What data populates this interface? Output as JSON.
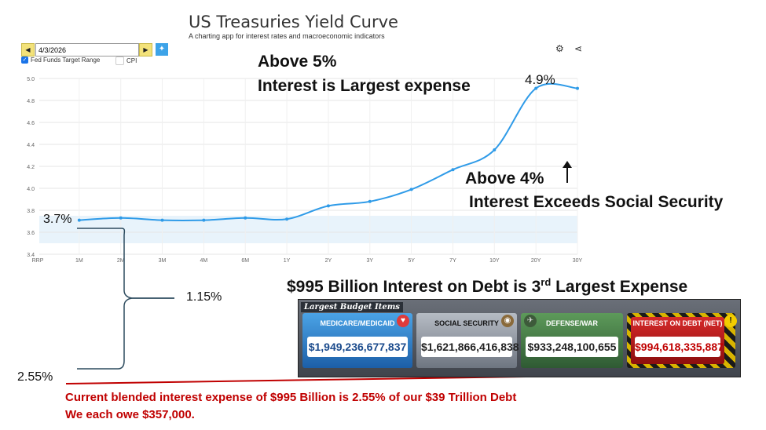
{
  "app": {
    "title": "US Treasuries Yield Curve",
    "subtitle": "A charting app for interest rates and macroeconomic indicators"
  },
  "controls": {
    "date_value": "4/3/2026",
    "prev_icon": "triangle-left-icon",
    "next_icon": "triangle-right-icon",
    "pin_icon": "pin-icon",
    "settings_icon": "gear-icon",
    "share_icon": "share-icon"
  },
  "legend": {
    "fed_funds": "Fed Funds Target Range",
    "fed_funds_checked": true,
    "cpi": "CPI",
    "cpi_checked": false
  },
  "chart_data": {
    "type": "line",
    "x": [
      "RRP",
      "1M",
      "2M",
      "3M",
      "4M",
      "6M",
      "1Y",
      "2Y",
      "3Y",
      "5Y",
      "7Y",
      "10Y",
      "20Y",
      "30Y"
    ],
    "series": [
      {
        "values": [
          null,
          3.71,
          3.73,
          3.71,
          3.71,
          3.73,
          3.72,
          3.84,
          3.88,
          3.99,
          4.17,
          4.35,
          4.91,
          4.91
        ]
      }
    ],
    "fed_funds_band": [
      3.5,
      3.75
    ],
    "ylim": [
      3.4,
      5.0
    ],
    "yticks": [
      "3.4",
      "3.6",
      "3.8",
      "4.0",
      "4.2",
      "4.4",
      "4.6",
      "4.8",
      "5.0"
    ],
    "grid": true,
    "line_color": "#2f9be8",
    "band_color": "#e8f3fb"
  },
  "annotations": {
    "above5": "Above 5%",
    "interest_largest": "Interest is Largest expense",
    "above4": "Above 4%",
    "exceeds_ss": "Interest Exceeds Social Security",
    "pct_49": "4.9%",
    "pct_37": "3.7%",
    "pct_115": "1.15%",
    "pct_255": "2.55%",
    "headline_main": "$995 Billion Interest on Debt  is 3",
    "headline_sup": "rd",
    "headline_end": " Largest Expense",
    "footer_line1": "Current blended interest expense of $995 Billion is 2.55% of  our $39 Trillion Debt",
    "footer_line2": "We each owe $357,000."
  },
  "budget": {
    "header": "Largest Budget Items",
    "items": [
      {
        "label": "MEDICARE/MEDICAID",
        "value": "$1,949,236,677,837"
      },
      {
        "label": "SOCIAL SECURITY",
        "value": "$1,621,866,416,838"
      },
      {
        "label": "DEFENSE/WAR",
        "value": "$933,248,100,655"
      },
      {
        "label": "INTEREST ON DEBT (NET)",
        "value": "$994,618,335,887"
      }
    ],
    "colors": {
      "medicare": "#1c5fa8",
      "interest": "#c00000",
      "hazard": "#d8b400"
    }
  }
}
